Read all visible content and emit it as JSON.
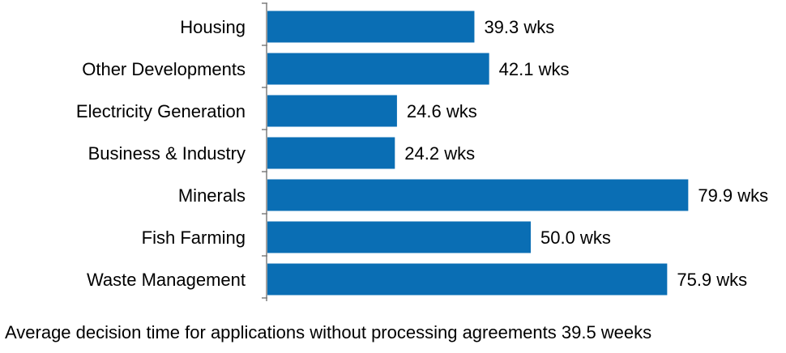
{
  "chart_data": {
    "type": "bar",
    "orientation": "horizontal",
    "categories": [
      "Housing",
      "Other Developments",
      "Electricity Generation",
      "Business & Industry",
      "Minerals",
      "Fish Farming",
      "Waste Management"
    ],
    "values": [
      39.3,
      42.1,
      24.6,
      24.2,
      79.9,
      50.0,
      75.9
    ],
    "value_labels": [
      "39.3 wks",
      "42.1 wks",
      "24.6 wks",
      "24.2 wks",
      "79.9 wks",
      "50.0 wks",
      "75.9 wks"
    ],
    "xlim": [
      0,
      80
    ],
    "grid": false,
    "legend": "none",
    "bar_color": "#0a6eb4"
  },
  "footnote": "Average decision time for applications without processing agreements 39.5 weeks"
}
